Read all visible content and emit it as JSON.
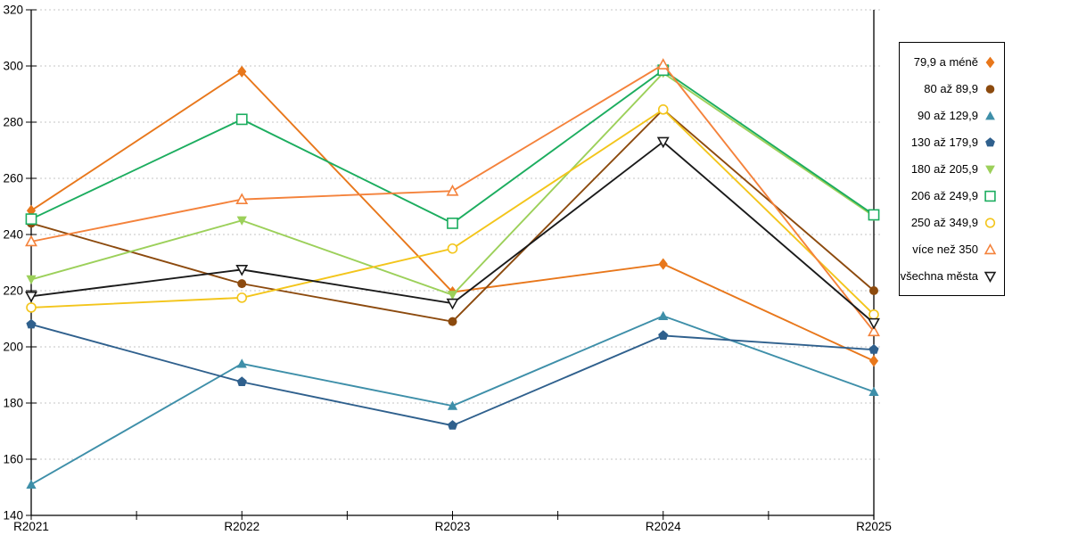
{
  "chart_data": {
    "type": "line",
    "title": "",
    "xlabel": "",
    "ylabel": "",
    "x_categories": [
      "R2021",
      "R2022",
      "R2023",
      "R2024",
      "R2025"
    ],
    "ylim": [
      140,
      320
    ],
    "ytick_step": 20,
    "ytick_labels": [
      "140",
      "160",
      "180",
      "200",
      "220",
      "240",
      "260",
      "280",
      "300",
      "320"
    ],
    "grid": "horizontal-dotted",
    "gridline_color": "#c6c6c6",
    "axis_color": "#000000",
    "right_boundary_at_last_category": true,
    "legend_position": "right",
    "series": [
      {
        "name": "79,9 a méně",
        "marker": "diamond-filled",
        "color": "#E8771B",
        "values": [
          248.5,
          298,
          219.5,
          229.5,
          195
        ]
      },
      {
        "name": "80 až 89,9",
        "marker": "circle-filled",
        "color": "#8C4A0E",
        "values": [
          244,
          222.5,
          209,
          284.5,
          220
        ]
      },
      {
        "name": "90 až 129,9",
        "marker": "triangle-up-filled",
        "color": "#3E8FA9",
        "values": [
          151,
          194,
          179,
          211,
          184
        ]
      },
      {
        "name": "130 až 179,9",
        "marker": "pentagon-filled",
        "color": "#2F608D",
        "values": [
          208,
          187.5,
          172,
          204,
          199
        ]
      },
      {
        "name": "180 až 205,9",
        "marker": "triangle-down-filled",
        "color": "#9CD05A",
        "values": [
          224,
          245,
          218.5,
          297.5,
          246.5
        ]
      },
      {
        "name": "206 až 249,9",
        "marker": "square-open",
        "color": "#1CAD5F",
        "values": [
          245.5,
          281,
          244,
          298.5,
          247
        ]
      },
      {
        "name": "250 až 349,9",
        "marker": "circle-open",
        "color": "#F3C51B",
        "values": [
          214,
          217.5,
          235,
          284.5,
          211.5
        ]
      },
      {
        "name": "více než 350",
        "marker": "triangle-up-open",
        "color": "#F4823B",
        "values": [
          237.5,
          252.5,
          255.5,
          300.5,
          205.5
        ]
      },
      {
        "name": "všechna města",
        "marker": "triangle-down-open",
        "color": "#1a1a1a",
        "values": [
          218,
          227.5,
          215.5,
          273,
          208.5
        ]
      }
    ]
  }
}
